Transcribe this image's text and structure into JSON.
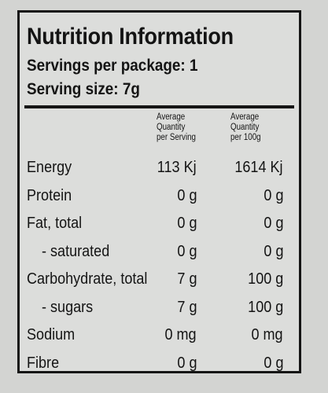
{
  "title": "Nutrition Information",
  "servings_per_package": "Servings per package: 1",
  "serving_size": "Serving size: 7g",
  "columns": {
    "per_serving": [
      "Average",
      "Quantity",
      "per Serving"
    ],
    "per_100g": [
      "Average",
      "Quantity",
      "per 100g"
    ]
  },
  "rows": [
    {
      "name": "Energy",
      "per_serving": "113 Kj",
      "per_100g": "1614 Kj"
    },
    {
      "name": "Protein",
      "per_serving": "0 g",
      "per_100g": "0 g"
    },
    {
      "name": "Fat, total",
      "per_serving": "0 g",
      "per_100g": "0 g"
    },
    {
      "name": "- saturated",
      "per_serving": "0 g",
      "per_100g": "0 g"
    },
    {
      "name": "Carbohydrate, total",
      "per_serving": "7 g",
      "per_100g": "100 g"
    },
    {
      "name": "- sugars",
      "per_serving": "7 g",
      "per_100g": "100 g"
    },
    {
      "name": "Sodium",
      "per_serving": "0 mg",
      "per_100g": "0 mg"
    },
    {
      "name": "Fibre",
      "per_serving": "0 g",
      "per_100g": "0 g"
    }
  ]
}
